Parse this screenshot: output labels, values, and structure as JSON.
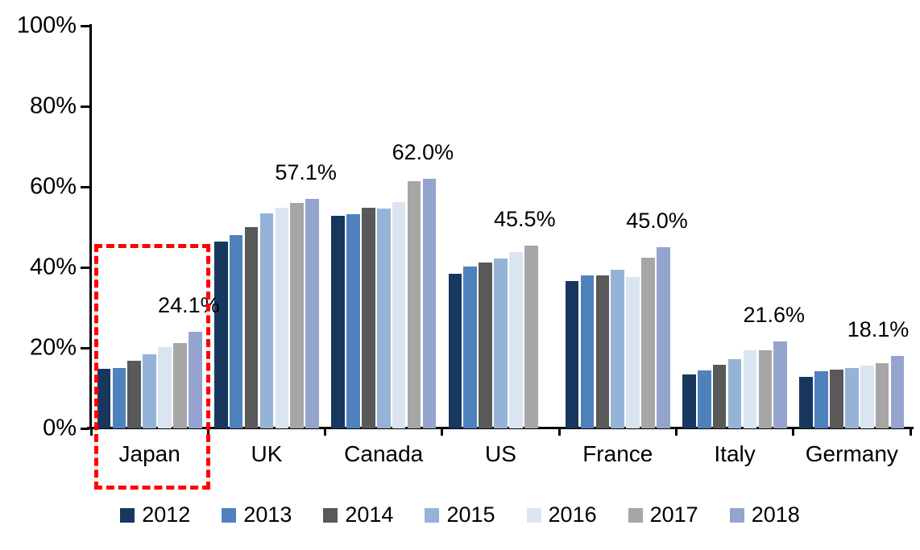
{
  "chart_data": {
    "type": "bar",
    "title": "",
    "xlabel": "",
    "ylabel": "",
    "categories": [
      "Japan",
      "UK",
      "Canada",
      "US",
      "France",
      "Italy",
      "Germany"
    ],
    "series": [
      {
        "name": "2012",
        "color": "#17375E",
        "values": [
          14.9,
          46.4,
          52.9,
          38.4,
          36.7,
          13.5,
          12.8
        ]
      },
      {
        "name": "2013",
        "color": "#4F81BD",
        "values": [
          15.0,
          48.0,
          53.3,
          40.2,
          38.1,
          14.4,
          14.2
        ]
      },
      {
        "name": "2014",
        "color": "#595959",
        "values": [
          16.8,
          50.1,
          54.9,
          41.3,
          38.0,
          15.8,
          14.6
        ]
      },
      {
        "name": "2015",
        "color": "#95B3D7",
        "values": [
          18.4,
          53.4,
          54.7,
          42.3,
          39.5,
          17.3,
          15.1
        ]
      },
      {
        "name": "2016",
        "color": "#DBE5F1",
        "values": [
          20.2,
          54.9,
          56.2,
          43.8,
          37.6,
          19.4,
          15.6
        ]
      },
      {
        "name": "2017",
        "color": "#A6A6A6",
        "values": [
          21.2,
          56.0,
          61.5,
          45.5,
          42.4,
          19.5,
          16.2
        ]
      },
      {
        "name": "2018",
        "color": "#95A4CF",
        "values": [
          24.1,
          57.1,
          62.0,
          null,
          45.0,
          21.6,
          18.1
        ]
      }
    ],
    "data_labels": [
      "24.1%",
      "57.1%",
      "62.0%",
      "45.5%",
      "45.0%",
      "21.6%",
      "18.1%"
    ],
    "y_ticks": [
      "0%",
      "20%",
      "40%",
      "60%",
      "80%",
      "100%"
    ],
    "y_tick_values": [
      0,
      20,
      40,
      60,
      80,
      100
    ],
    "ylim": [
      0,
      100
    ],
    "grid": false,
    "legend_position": "bottom",
    "legend_items": [
      "2012",
      "2013",
      "2014",
      "2015",
      "2016",
      "2017",
      "2018"
    ],
    "highlight": {
      "category": "Japan",
      "style": "red-dashed-rectangle",
      "color": "#FF0000"
    }
  }
}
